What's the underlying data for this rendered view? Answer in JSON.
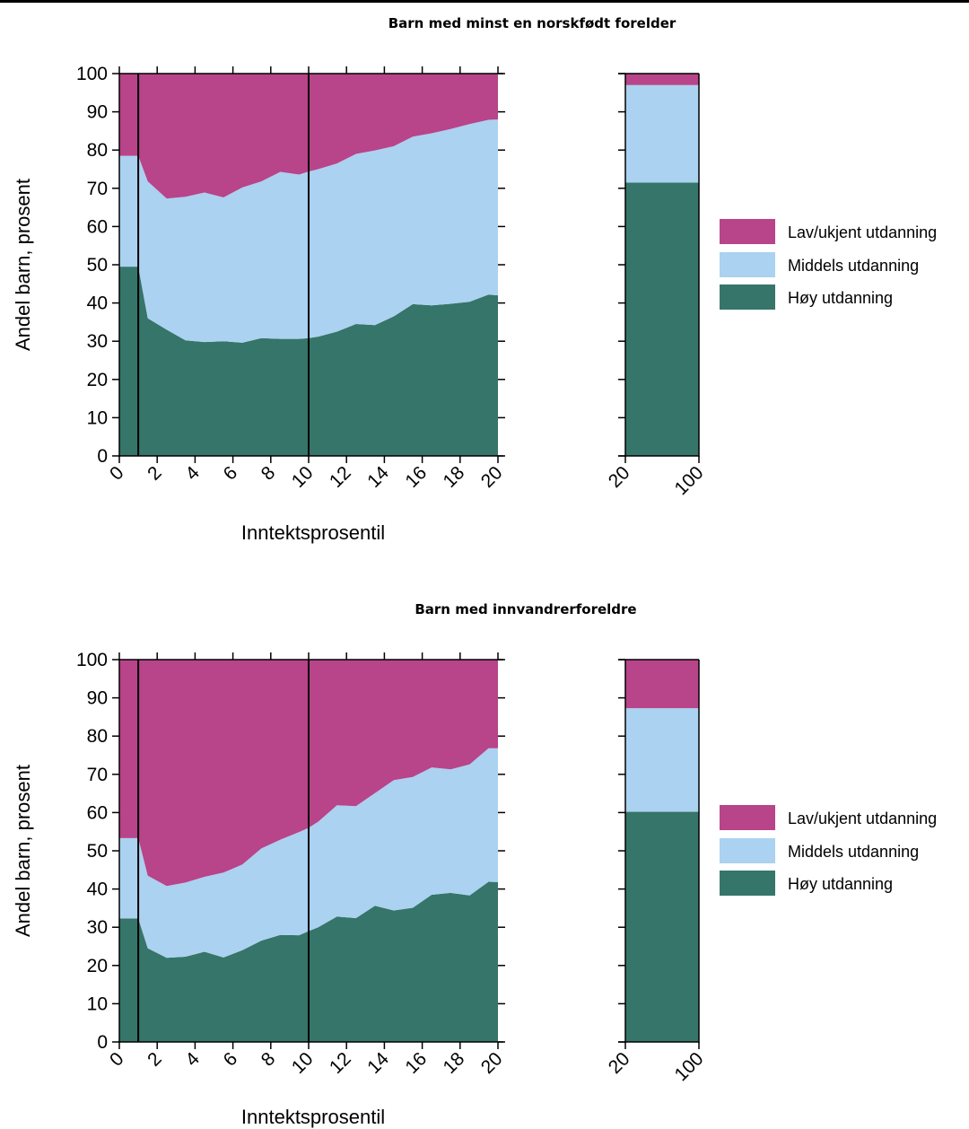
{
  "colors": {
    "low": "#b8448a",
    "mid": "#abd2f0",
    "high": "#36756a"
  },
  "legend": [
    "Lav/ukjent utdanning",
    "Middels utdanning",
    "Høy utdanning"
  ],
  "chart_data": [
    {
      "type": "area",
      "title": "Barn med minst en norskfødt forelder",
      "xlabel": "Inntektsprosentil",
      "ylabel": "Andel barn, prosent",
      "xlim": [
        0,
        20
      ],
      "ylim": [
        0,
        100
      ],
      "yticks": [
        "0",
        "10",
        "20",
        "30",
        "40",
        "50",
        "60",
        "70",
        "80",
        "90",
        "100"
      ],
      "xticks": [
        "0",
        "2",
        "4",
        "6",
        "8",
        "10",
        "12",
        "14",
        "16",
        "18",
        "20"
      ],
      "vlines": [
        1,
        10
      ],
      "x": [
        0,
        1,
        1.5,
        2.5,
        3.5,
        4.5,
        5.5,
        6.5,
        7.5,
        8.5,
        9.5,
        10,
        10.5,
        11.5,
        12.5,
        13.5,
        14.5,
        15.5,
        16.5,
        17.5,
        18.5,
        19.5,
        20
      ],
      "series": [
        {
          "name": "Høy utdanning",
          "values": [
            49.5,
            49.5,
            36,
            33,
            30.2,
            29.8,
            30,
            29.6,
            30.8,
            30.6,
            30.6,
            30.8,
            31.2,
            32.5,
            34.5,
            34.2,
            36.5,
            39.7,
            39.4,
            39.8,
            40.3,
            42.2,
            42
          ]
        },
        {
          "name": "Middels utdanning",
          "values": [
            29,
            29,
            35.8,
            34.3,
            37.6,
            39.1,
            37.6,
            40.6,
            41,
            43.7,
            43,
            43.6,
            43.8,
            44,
            44.5,
            45.7,
            44.5,
            43.8,
            45,
            45.7,
            46.5,
            45.7,
            46
          ]
        },
        {
          "name": "Lav/ukjent utdanning",
          "values": [
            21.5,
            21.5,
            28.2,
            32.7,
            32.2,
            31.1,
            32.4,
            29.8,
            28.2,
            25.7,
            26.4,
            25.6,
            25,
            23.5,
            21,
            20.1,
            19,
            16.5,
            15.6,
            14.5,
            13.2,
            12.1,
            12
          ]
        }
      ],
      "bar": {
        "xticks": [
          "20",
          "100"
        ],
        "values": {
          "Høy utdanning": 71.5,
          "Middels utdanning": 25.5,
          "Lav/ukjent utdanning": 3
        }
      }
    },
    {
      "type": "area",
      "title": "Barn med innvandrerforeldre",
      "xlabel": "Inntektsprosentil",
      "ylabel": "Andel barn, prosent",
      "xlim": [
        0,
        20
      ],
      "ylim": [
        0,
        100
      ],
      "yticks": [
        "0",
        "10",
        "20",
        "30",
        "40",
        "50",
        "60",
        "70",
        "80",
        "90",
        "100"
      ],
      "xticks": [
        "0",
        "2",
        "4",
        "6",
        "8",
        "10",
        "12",
        "14",
        "16",
        "18",
        "20"
      ],
      "vlines": [
        1,
        10
      ],
      "x": [
        0,
        1,
        1.5,
        2.5,
        3.5,
        4.5,
        5.5,
        6.5,
        7.5,
        8.5,
        9.5,
        10,
        10.5,
        11.5,
        12.5,
        13.5,
        14.5,
        15.5,
        16.5,
        17.5,
        18.5,
        19.5,
        20
      ],
      "series": [
        {
          "name": "Høy utdanning",
          "values": [
            32.3,
            32.3,
            24.5,
            22,
            22.3,
            23.6,
            22.1,
            24,
            26.5,
            28,
            27.9,
            29,
            30,
            32.8,
            32.4,
            35.6,
            34.4,
            35.1,
            38.5,
            39,
            38.3,
            41.9,
            41.8
          ]
        },
        {
          "name": "Middels utdanning",
          "values": [
            21,
            21,
            19,
            18.8,
            19.4,
            19.6,
            22.2,
            22.4,
            24.1,
            24.9,
            27,
            27,
            27.6,
            29.1,
            29.3,
            29.5,
            34.1,
            34.2,
            33.3,
            32.3,
            34.3,
            34.9,
            35
          ]
        },
        {
          "name": "Lav/ukjent utdanning",
          "values": [
            46.7,
            46.7,
            56.5,
            59.2,
            58.3,
            56.8,
            55.7,
            53.6,
            49.4,
            47.1,
            45.1,
            44,
            42.4,
            38.1,
            38.3,
            34.9,
            31.5,
            30.7,
            28.2,
            28.7,
            27.4,
            23.2,
            23.2
          ]
        }
      ],
      "bar": {
        "xticks": [
          "20",
          "100"
        ],
        "values": {
          "Høy utdanning": 60.2,
          "Middels utdanning": 27.1,
          "Lav/ukjent utdanning": 12.7
        }
      }
    }
  ]
}
